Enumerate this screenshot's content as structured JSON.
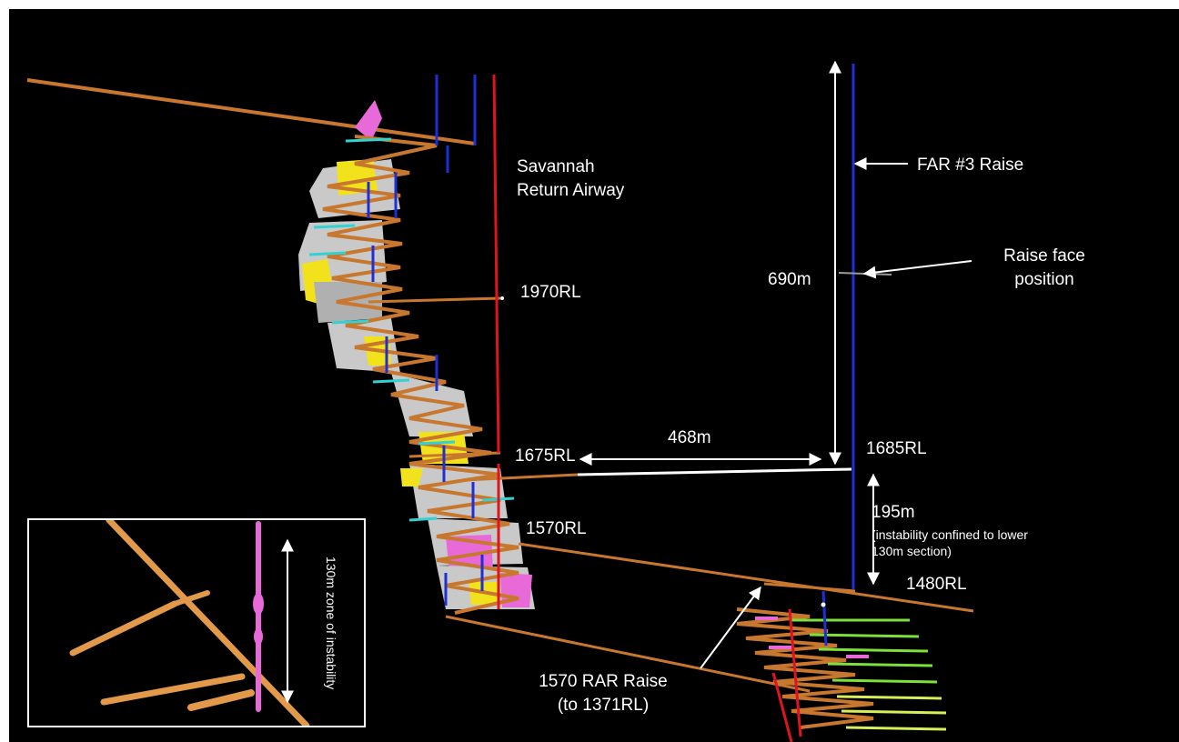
{
  "labels": {
    "savannah_line1": "Savannah",
    "savannah_line2": "Return Airway",
    "far_raise": "FAR #3 Raise",
    "raise_face_line1": "Raise face",
    "raise_face_line2": "position",
    "dist_690": "690m",
    "rl_1970": "1970RL",
    "rl_1675": "1675RL",
    "dist_468": "468m",
    "rl_1685": "1685RL",
    "dist_195": "195m",
    "instability_note_line1": "(instability confined to lower",
    "instability_note_line2": "130m section)",
    "rl_1570": "1570RL",
    "rl_1480": "1480RL",
    "rar_raise_line1": "1570 RAR Raise",
    "rar_raise_line2": "(to 1371RL)"
  },
  "inset": {
    "label": "130m zone of instability"
  },
  "colors": {
    "background": "#000000",
    "drive": "#c8782e",
    "drive_light": "#e29a4a",
    "raise_blue": "#1f2fd6",
    "airway_red": "#e0141e",
    "stope_pink": "#e86ad8",
    "stope_yellow": "#f2e21c",
    "stope_grey": "#c9c9c9",
    "drill_cyan": "#32d2d2",
    "drill_green": "#7ee03a",
    "annotation": "#ffffff"
  }
}
